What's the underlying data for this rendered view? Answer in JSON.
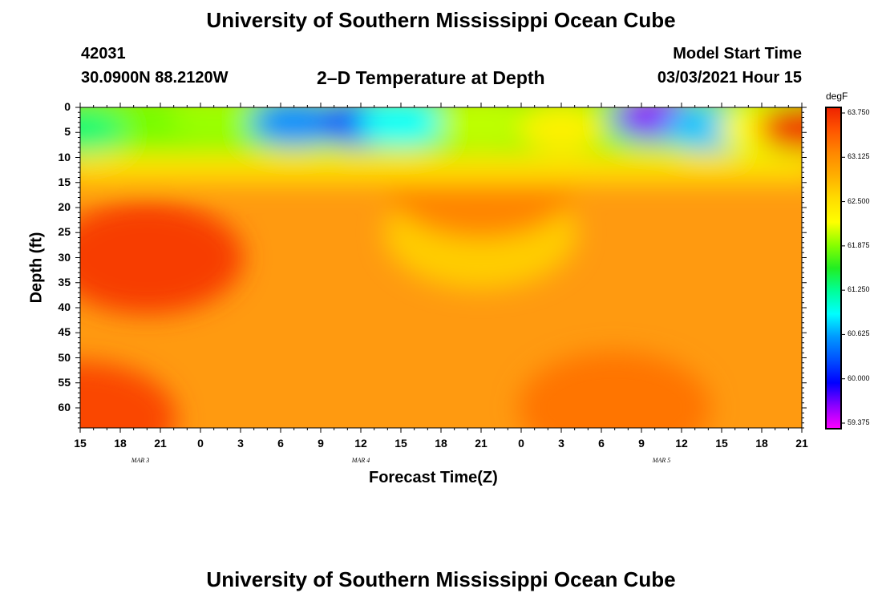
{
  "header": {
    "title": "University of Southern Mississippi Ocean Cube",
    "footer_title": "University of Southern Mississippi Ocean Cube",
    "station_id": "42031",
    "coordinates": "30.0900N 88.2120W",
    "plot_title": "2–D Temperature at Depth",
    "model_start_label": "Model Start Time",
    "model_start_value": "03/03/2021 Hour 15"
  },
  "chart_data": {
    "type": "heatmap",
    "title": "2–D Temperature at Depth",
    "xlabel": "Forecast Time(Z)",
    "ylabel": "Depth (ft)",
    "x_tick_labels": [
      "15",
      "18",
      "21",
      "0",
      "3",
      "6",
      "9",
      "12",
      "15",
      "18",
      "21",
      "0",
      "3",
      "6",
      "9",
      "12",
      "15",
      "18",
      "21"
    ],
    "date_labels": [
      {
        "label": "MAR 3",
        "tick_index": 1.5
      },
      {
        "label": "MAR 4",
        "tick_index": 7
      },
      {
        "label": "MAR 5",
        "tick_index": 14.5
      }
    ],
    "y_tick_labels": [
      "0",
      "5",
      "10",
      "15",
      "20",
      "25",
      "30",
      "35",
      "40",
      "45",
      "50",
      "55",
      "60"
    ],
    "depth_range_ft": [
      0,
      64
    ],
    "forecast_hours": [
      0,
      54
    ],
    "colorbar": {
      "unit": "degF",
      "ticks": [
        "63.750",
        "63.125",
        "62.500",
        "61.875",
        "61.250",
        "60.625",
        "60.000",
        "59.375"
      ],
      "range": [
        59.375,
        63.875
      ],
      "colors": [
        "#ff00ff",
        "#8a00ff",
        "#0000ff",
        "#0050ff",
        "#0099ff",
        "#00ffff",
        "#00ff99",
        "#22ee22",
        "#88ff00",
        "#ffff00",
        "#ffdd00",
        "#ffb000",
        "#ff8800",
        "#ff5500",
        "#ee2200"
      ]
    },
    "surface_temps_degF": [
      {
        "hour": 0,
        "depth": 5,
        "value": 61.4
      },
      {
        "hour": 10,
        "depth": 2,
        "value": 62.0
      },
      {
        "hour": 16,
        "depth": 3,
        "value": 60.6
      },
      {
        "hour": 21,
        "depth": 3,
        "value": 60.3
      },
      {
        "hour": 24,
        "depth": 3,
        "value": 61.0
      },
      {
        "hour": 30,
        "depth": 3,
        "value": 62.1
      },
      {
        "hour": 36,
        "depth": 4,
        "value": 62.4
      },
      {
        "hour": 43,
        "depth": 2,
        "value": 59.7
      },
      {
        "hour": 47,
        "depth": 4,
        "value": 60.8
      },
      {
        "hour": 51,
        "depth": 4,
        "value": 62.3
      },
      {
        "hour": 54,
        "depth": 4,
        "value": 63.8
      }
    ],
    "subsurface_temps_degF": [
      {
        "hour": 5,
        "depth": 30,
        "value": 63.7
      },
      {
        "hour": 30,
        "depth": 25,
        "value": 62.7
      },
      {
        "hour": 30,
        "depth": 15,
        "value": 63.25
      },
      {
        "hour": 0,
        "depth": 62,
        "value": 63.65
      },
      {
        "hour": 40,
        "depth": 60,
        "value": 63.35
      }
    ]
  }
}
